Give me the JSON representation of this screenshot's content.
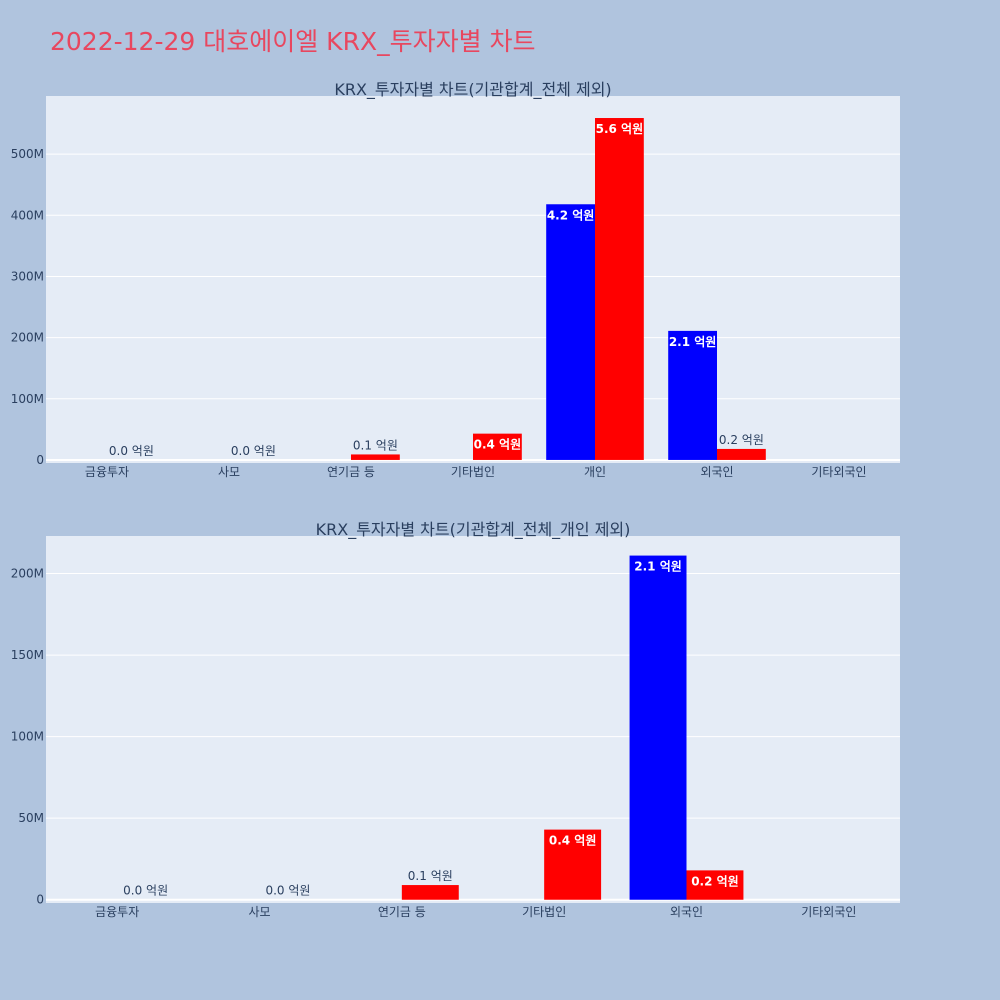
{
  "page": {
    "title": "2022-12-29 대호에이엘 KRX_투자자별 차트"
  },
  "colors": {
    "background": "#b0c4de",
    "plot_bg": "#e5ecf6",
    "buy": "#0000ff",
    "sell": "#ff0000",
    "title": "#e8475f",
    "text": "#2a3f5f"
  },
  "chart_data": [
    {
      "type": "bar",
      "title": "KRX_투자자별 차트(기관합계_전체 제외)",
      "categories": [
        "금융투자",
        "사모",
        "연기금 등",
        "기타법인",
        "개인",
        "외국인",
        "기타외국인"
      ],
      "ylim": [
        -5000000,
        595000000
      ],
      "yticks": [
        0,
        100000000,
        200000000,
        300000000,
        400000000,
        500000000
      ],
      "ytick_labels": [
        "0",
        "100M",
        "200M",
        "300M",
        "400M",
        "500M"
      ],
      "grid": true,
      "series": [
        {
          "color": "#0000ff",
          "values": [
            0,
            0,
            0,
            0,
            418000000,
            211000000,
            0
          ],
          "labels": [
            "",
            "",
            "",
            "",
            "4.2 억원",
            "2.1 억원",
            ""
          ]
        },
        {
          "color": "#ff0000",
          "values": [
            0,
            0,
            9000000,
            43000000,
            559000000,
            18000000,
            0
          ],
          "labels": [
            "0.0 억원",
            "0.0 억원",
            "0.1 억원",
            "0.4 억원",
            "5.6 억원",
            "0.2 억원",
            ""
          ]
        }
      ]
    },
    {
      "type": "bar",
      "title": "KRX_투자자별 차트(기관합계_전체_개인 제외)",
      "categories": [
        "금융투자",
        "사모",
        "연기금 등",
        "기타법인",
        "외국인",
        "기타외국인"
      ],
      "ylim": [
        -2000000,
        223000000
      ],
      "yticks": [
        0,
        50000000,
        100000000,
        150000000,
        200000000
      ],
      "ytick_labels": [
        "0",
        "50M",
        "100M",
        "150M",
        "200M"
      ],
      "grid": true,
      "series": [
        {
          "color": "#0000ff",
          "values": [
            0,
            0,
            0,
            0,
            211000000,
            0
          ],
          "labels": [
            "",
            "",
            "",
            "",
            "2.1 억원",
            ""
          ]
        },
        {
          "color": "#ff0000",
          "values": [
            0,
            0,
            9000000,
            43000000,
            18000000,
            0
          ],
          "labels": [
            "0.0 억원",
            "0.0 억원",
            "0.1 억원",
            "0.4 억원",
            "0.2 억원",
            ""
          ]
        }
      ]
    }
  ]
}
